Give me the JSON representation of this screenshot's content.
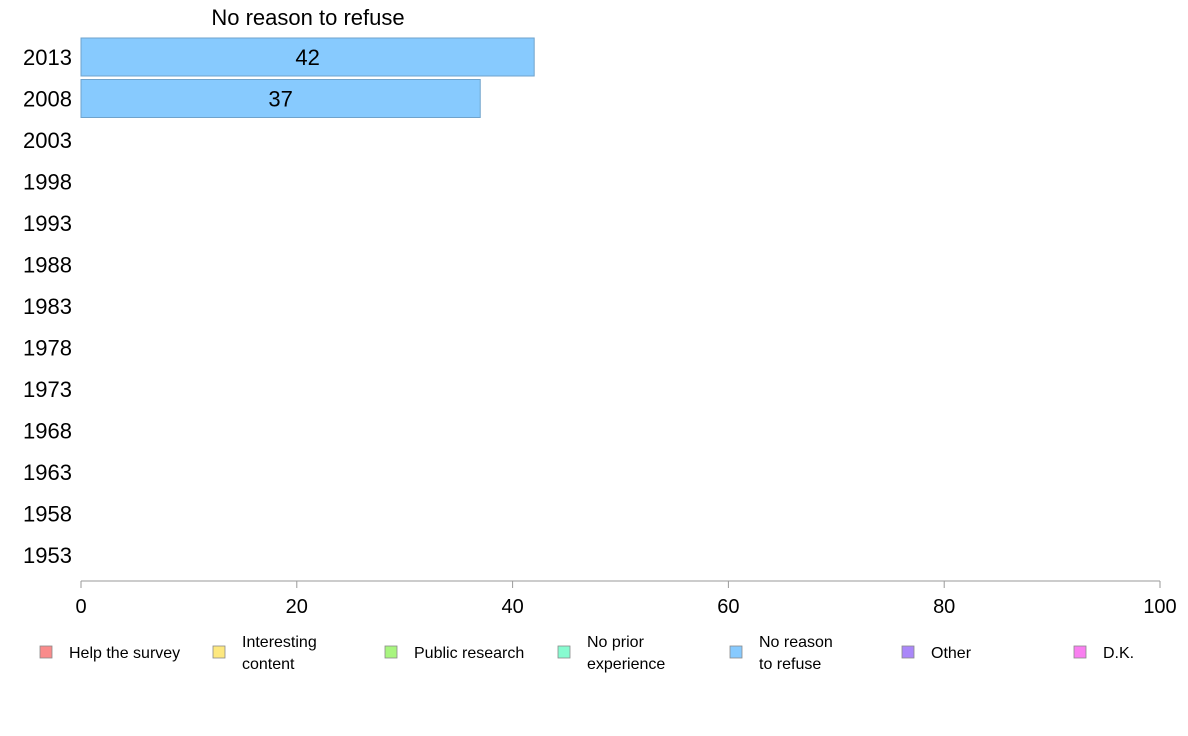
{
  "chart_data": {
    "type": "bar",
    "orientation": "horizontal",
    "title": "No reason to refuse",
    "categories": [
      "2013",
      "2008",
      "2003",
      "1998",
      "1993",
      "1988",
      "1983",
      "1978",
      "1973",
      "1968",
      "1963",
      "1958",
      "1953"
    ],
    "series": [
      {
        "name": "No reason to refuse",
        "values": [
          42,
          37,
          null,
          null,
          null,
          null,
          null,
          null,
          null,
          null,
          null,
          null,
          null
        ],
        "color": "#87cafe"
      }
    ],
    "xlim": [
      0,
      100
    ],
    "xticks": [
      "0",
      "20",
      "40",
      "60",
      "80",
      "100"
    ],
    "grid": false,
    "legend_position": "bottom",
    "legend": [
      {
        "lines": [
          "Help the survey"
        ],
        "color": "#f98b8b"
      },
      {
        "lines": [
          "Interesting",
          "content"
        ],
        "color": "#fde87f"
      },
      {
        "lines": [
          "Public research"
        ],
        "color": "#a8f57f"
      },
      {
        "lines": [
          "No prior",
          "experience"
        ],
        "color": "#87fbd0"
      },
      {
        "lines": [
          "No reason",
          "to refuse"
        ],
        "color": "#87cafe"
      },
      {
        "lines": [
          "Other"
        ],
        "color": "#aa87f9"
      },
      {
        "lines": [
          "D.K."
        ],
        "color": "#f97ff0"
      }
    ]
  }
}
